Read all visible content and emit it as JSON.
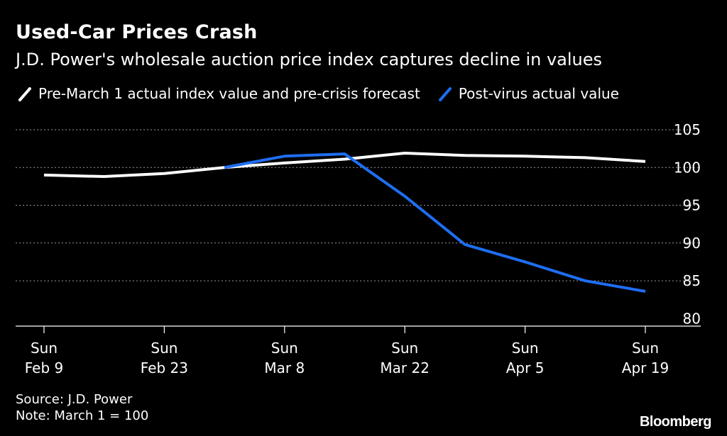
{
  "header": {
    "title": "Used-Car Prices Crash",
    "subtitle": "J.D. Power's wholesale auction price index captures decline in values"
  },
  "legend": {
    "items": [
      {
        "label": "Pre-March 1 actual index value and pre-crisis forecast",
        "color": "#ffffff"
      },
      {
        "label": "Post-virus actual value",
        "color": "#1f6ef2"
      }
    ]
  },
  "footer": {
    "source": "Source: J.D. Power",
    "note": "Note: March 1 = 100",
    "logo": "Bloomberg"
  },
  "chart_data": {
    "type": "line",
    "x": [
      "Feb 9",
      "Feb 16",
      "Feb 23",
      "Mar 1",
      "Mar 8",
      "Mar 15",
      "Mar 22",
      "Mar 29",
      "Apr 5",
      "Apr 12",
      "Apr 19"
    ],
    "x_tick_labels": [
      {
        "day": "Sun",
        "date": "Feb 9"
      },
      {
        "day": "Sun",
        "date": "Feb 23"
      },
      {
        "day": "Sun",
        "date": "Mar 8"
      },
      {
        "day": "Sun",
        "date": "Mar 22"
      },
      {
        "day": "Sun",
        "date": "Apr 5"
      },
      {
        "day": "Sun",
        "date": "Apr 19"
      }
    ],
    "y_ticks": [
      105,
      100,
      95,
      90,
      85,
      80
    ],
    "ylim": [
      79,
      105
    ],
    "grid": true,
    "y_axis_side": "right",
    "series": [
      {
        "name": "Pre-March 1 actual index value and pre-crisis forecast",
        "color": "#ffffff",
        "x": [
          "Feb 9",
          "Feb 16",
          "Feb 23",
          "Mar 1",
          "Mar 8",
          "Mar 15",
          "Mar 22",
          "Mar 29",
          "Apr 5",
          "Apr 12",
          "Apr 19"
        ],
        "values": [
          99.0,
          98.8,
          99.2,
          100.0,
          100.6,
          101.1,
          101.9,
          101.6,
          101.5,
          101.3,
          100.8
        ]
      },
      {
        "name": "Post-virus actual value",
        "color": "#1f6ef2",
        "x": [
          "Mar 1",
          "Mar 8",
          "Mar 15",
          "Mar 22",
          "Mar 29",
          "Apr 5",
          "Apr 12",
          "Apr 19"
        ],
        "values": [
          100.0,
          101.5,
          101.8,
          96.2,
          89.8,
          87.5,
          85.0,
          83.6
        ]
      }
    ]
  }
}
